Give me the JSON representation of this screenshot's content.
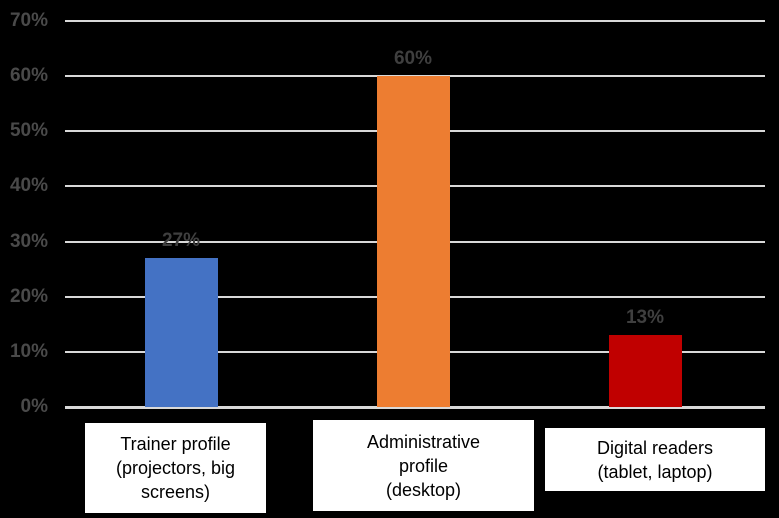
{
  "chart_data": {
    "type": "bar",
    "categories": [
      "Trainer profile (projectors, big screens)",
      "Administrative profile (desktop)",
      "Digital readers (tablet, laptop)"
    ],
    "category_display": [
      "Trainer profile\n(projectors, big\nscreens)",
      "Administrative\nprofile\n(desktop)",
      "Digital readers\n(tablet, laptop)"
    ],
    "values": [
      27,
      60,
      13
    ],
    "data_labels": [
      "27%",
      "60%",
      "13%"
    ],
    "ytick_values": [
      0,
      10,
      20,
      30,
      40,
      50,
      60,
      70
    ],
    "ytick_labels": [
      "0%",
      "10%",
      "20%",
      "30%",
      "40%",
      "50%",
      "60%",
      "70%"
    ],
    "ylim": [
      0,
      70
    ],
    "grid": true,
    "legend": "none",
    "title": "",
    "xlabel": "",
    "ylabel": "",
    "colors": {
      "background": "#000000",
      "gridline": "#D9D9D9",
      "axis_tick_text": "#4A4A4A",
      "data_label_text": "#3F3F3F",
      "category_box_bg": "#FFFFFF",
      "category_text": "#000000",
      "bars": [
        "#4472C4",
        "#ED7D31",
        "#C00000"
      ]
    }
  }
}
